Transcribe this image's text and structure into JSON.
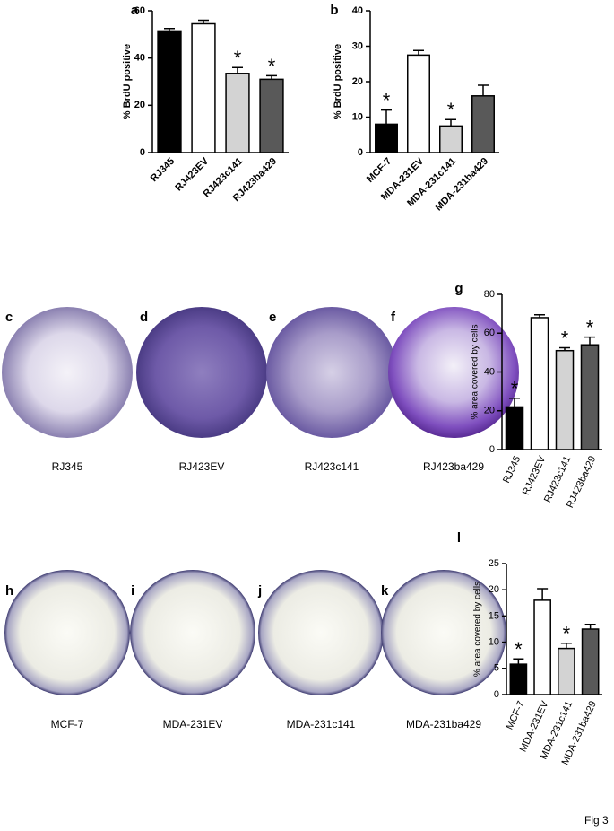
{
  "chart_data": [
    {
      "type": "bar",
      "panel": "a",
      "y_label": "% BrdU positive",
      "categories": [
        "RJ345",
        "RJ423EV",
        "RJ423c141",
        "RJ423ba429"
      ],
      "values": [
        51.5,
        54.5,
        33.5,
        31
      ],
      "errors": [
        1,
        1.5,
        2.5,
        1.5
      ],
      "significance": [
        null,
        null,
        "*",
        "*"
      ],
      "colors": [
        "#000000",
        "#ffffff",
        "#d3d3d3",
        "#595959"
      ],
      "ylim": [
        0,
        60
      ],
      "yticks": [
        0,
        20,
        40,
        60
      ]
    },
    {
      "type": "bar",
      "panel": "b",
      "y_label": "% BrdU positive",
      "categories": [
        "MCF-7",
        "MDA-231EV",
        "MDA-231c141",
        "MDA-231ba429"
      ],
      "values": [
        8,
        27.5,
        7.5,
        16
      ],
      "errors": [
        4,
        1.3,
        1.8,
        3
      ],
      "significance": [
        "*",
        null,
        "*",
        null
      ],
      "colors": [
        "#000000",
        "#ffffff",
        "#d3d3d3",
        "#595959"
      ],
      "ylim": [
        0,
        40
      ],
      "yticks": [
        0,
        10,
        20,
        30,
        40
      ]
    },
    {
      "type": "bar",
      "panel": "g",
      "y_label": "% area covered by cells",
      "categories": [
        "RJ345",
        "RJ423EV",
        "RJ423c141",
        "RJ423ba429"
      ],
      "values": [
        22,
        68,
        51,
        54
      ],
      "errors": [
        4.5,
        1.5,
        1.5,
        4
      ],
      "significance": [
        "*",
        null,
        "*",
        "*"
      ],
      "colors": [
        "#000000",
        "#ffffff",
        "#d3d3d3",
        "#595959"
      ],
      "ylim": [
        0,
        80
      ],
      "yticks": [
        0,
        20,
        40,
        60,
        80
      ]
    },
    {
      "type": "bar",
      "panel": "l",
      "y_label": "% area covered by cells",
      "categories": [
        "MCF-7",
        "MDA-231EV",
        "MDA-231c141",
        "MDA-231ba429"
      ],
      "values": [
        5.8,
        18,
        8.8,
        12.5
      ],
      "errors": [
        1,
        2.2,
        1,
        0.9
      ],
      "significance": [
        "*",
        null,
        "*",
        null
      ],
      "colors": [
        "#000000",
        "#ffffff",
        "#d3d3d3",
        "#595959"
      ],
      "ylim": [
        0,
        25
      ],
      "yticks": [
        0,
        5,
        10,
        15,
        20,
        25
      ]
    }
  ],
  "images": [
    {
      "panel": "c",
      "label": "RJ345"
    },
    {
      "panel": "d",
      "label": "RJ423EV"
    },
    {
      "panel": "e",
      "label": "RJ423c141"
    },
    {
      "panel": "f",
      "label": "RJ423ba429"
    },
    {
      "panel": "h",
      "label": "MCF-7"
    },
    {
      "panel": "i",
      "label": "MDA-231EV"
    },
    {
      "panel": "j",
      "label": "MDA-231c141"
    },
    {
      "panel": "k",
      "label": "MDA-231ba429"
    }
  ],
  "figure_label": "Fig 3"
}
